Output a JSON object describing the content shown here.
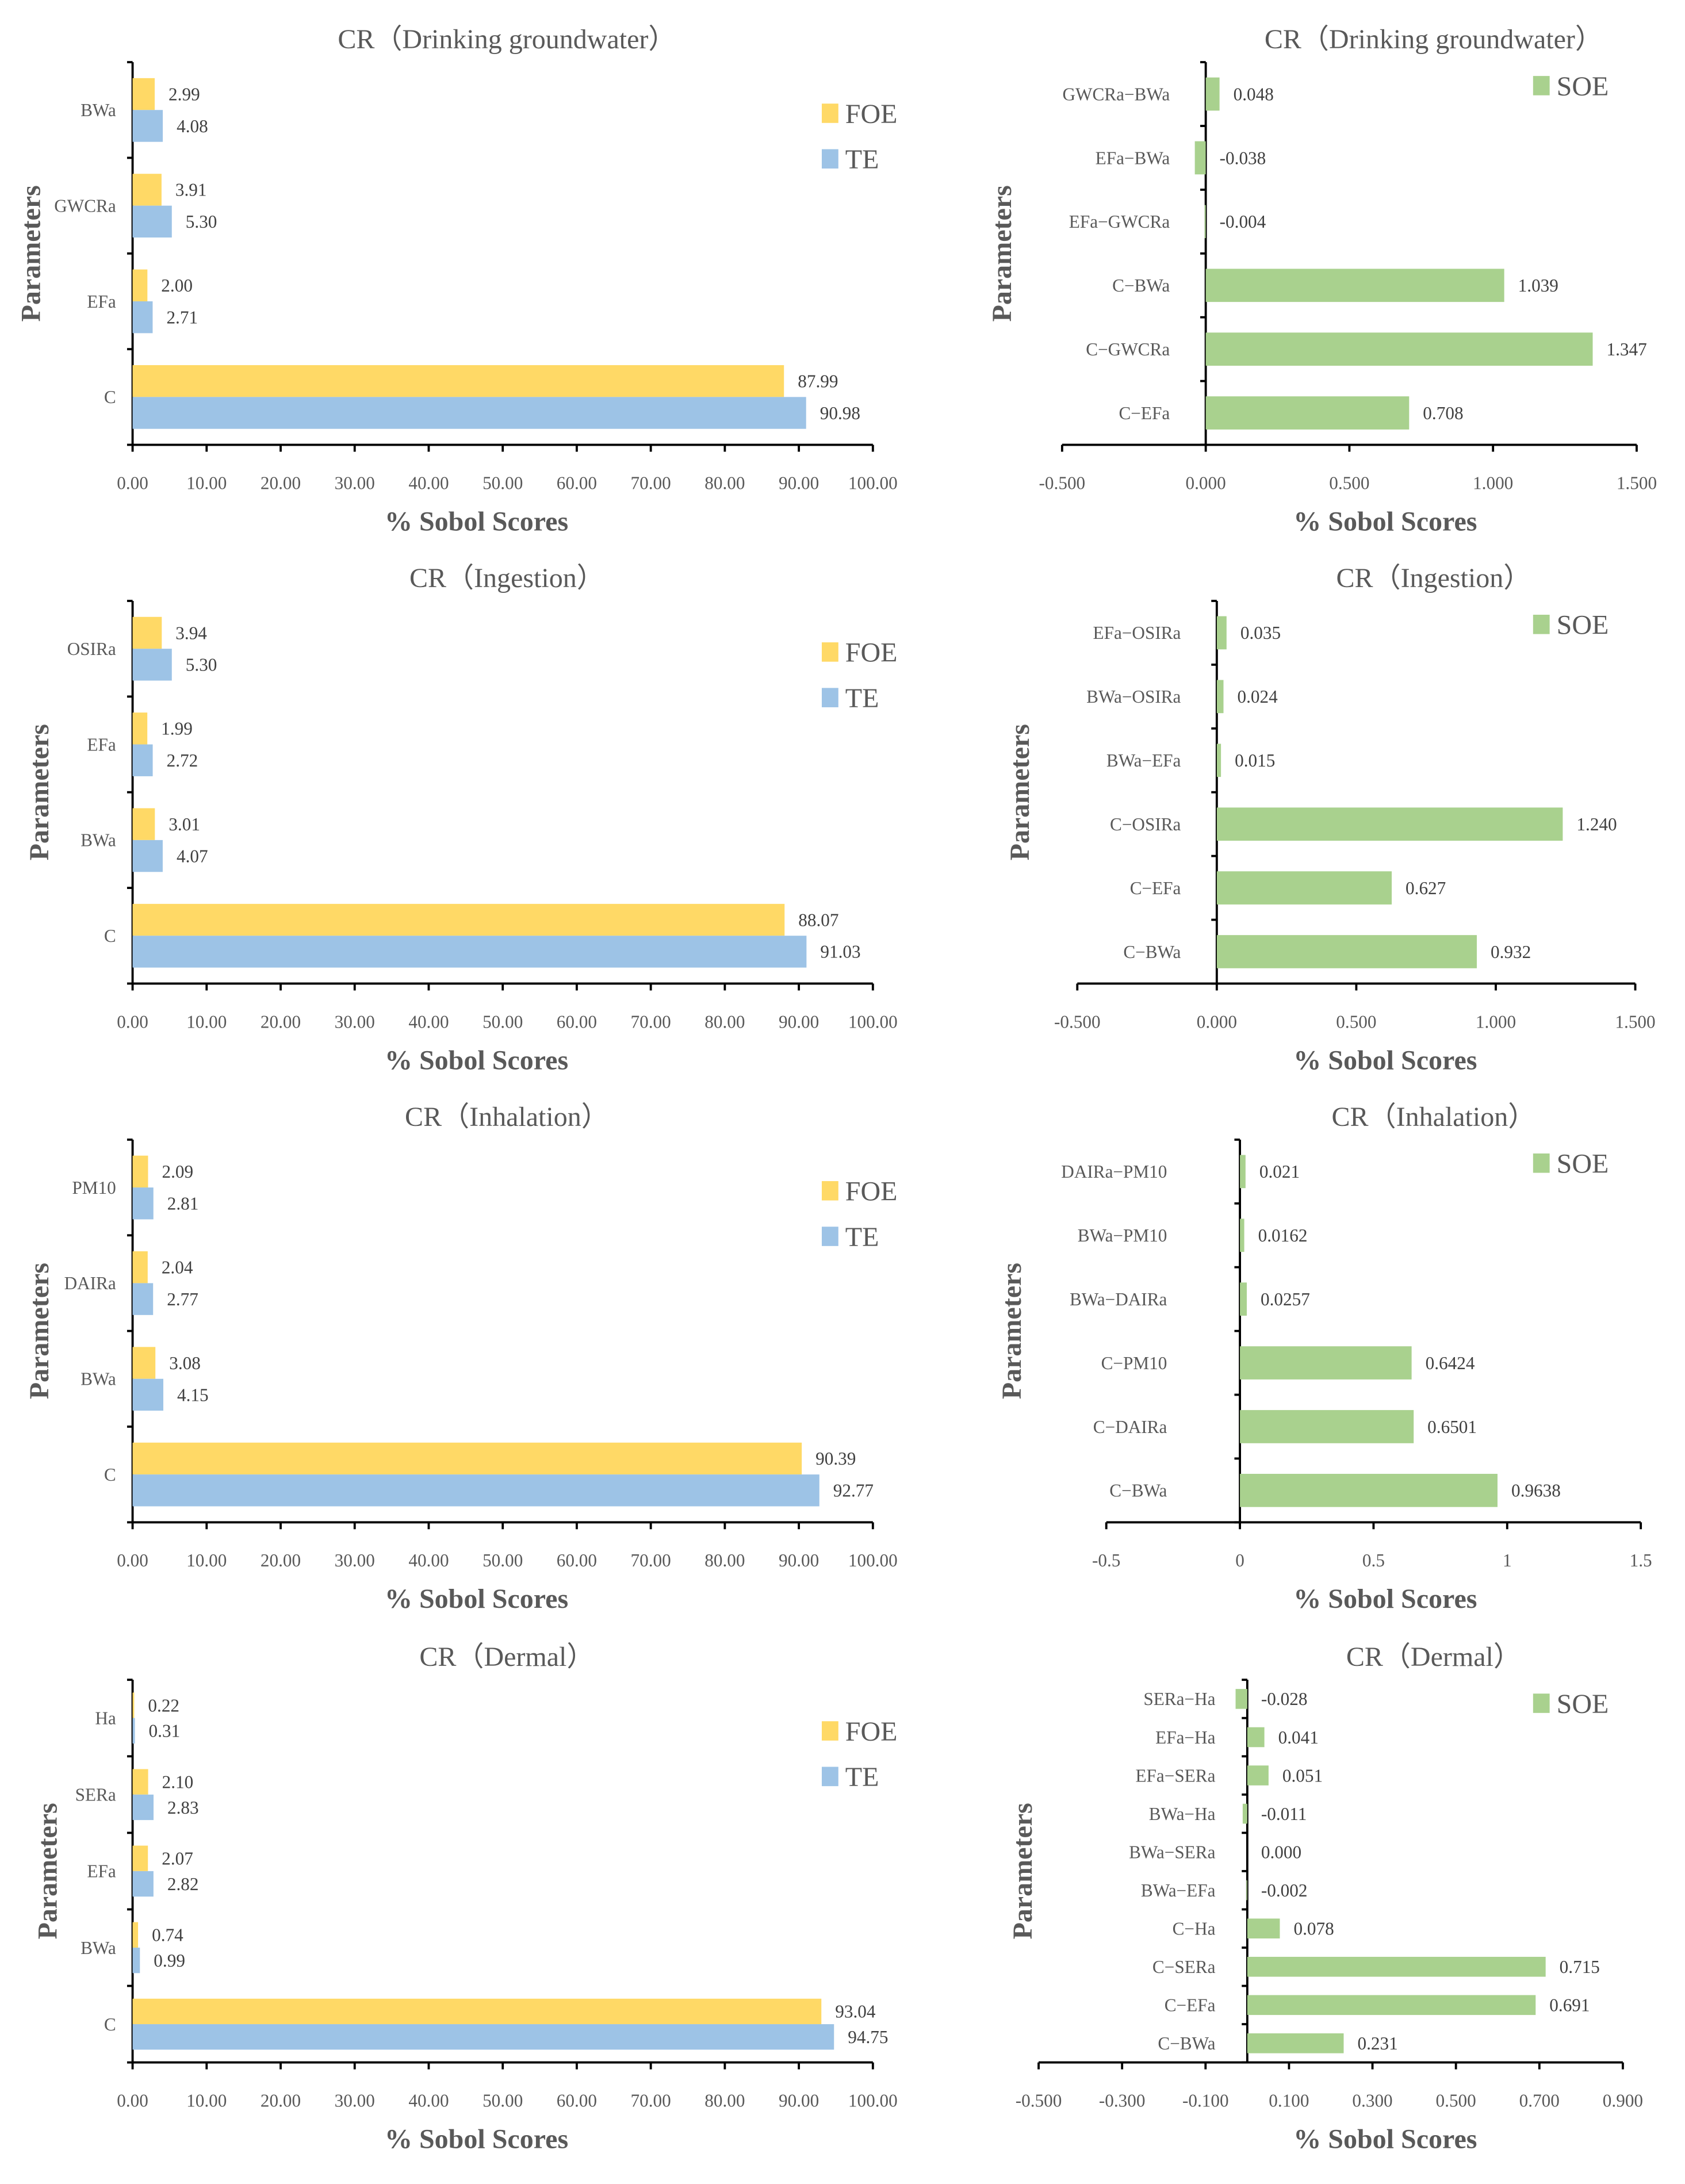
{
  "colors": {
    "FOE": "#FFD966",
    "TE": "#9DC3E6",
    "SOE": "#A9D18E",
    "text": "#595959"
  },
  "chart_data": [
    {
      "type": "bar",
      "orientation": "horizontal",
      "title": "CR（Drinking groundwater）",
      "xlabel": "% Sobol Scores",
      "ylabel": "Parameters",
      "categories": [
        "BWa",
        "GWCRa",
        "EFa",
        "C"
      ],
      "xlim": [
        0,
        100
      ],
      "xticks": [
        "0.00",
        "10.00",
        "20.00",
        "30.00",
        "40.00",
        "50.00",
        "60.00",
        "70.00",
        "80.00",
        "90.00",
        "100.00"
      ],
      "legend": "top-right",
      "series": [
        {
          "name": "FOE",
          "values": [
            2.99,
            3.91,
            2.0,
            87.99
          ],
          "labels": [
            "2.99",
            "3.91",
            "2.00",
            "87.99"
          ]
        },
        {
          "name": "TE",
          "values": [
            4.08,
            5.3,
            2.71,
            90.98
          ],
          "labels": [
            "4.08",
            "5.30",
            "2.71",
            "90.98"
          ]
        }
      ]
    },
    {
      "type": "bar",
      "orientation": "horizontal",
      "title": "CR（Drinking groundwater）",
      "xlabel": "% Sobol Scores",
      "ylabel": "Parameters",
      "categories": [
        "GWCRa−BWa",
        "EFa−BWa",
        "EFa−GWCRa",
        "C−BWa",
        "C−GWCRa",
        "C−EFa"
      ],
      "xlim": [
        -0.5,
        1.5
      ],
      "xticks": [
        "-0.500",
        "0.000",
        "0.500",
        "1.000",
        "1.500"
      ],
      "legend": "top-right",
      "series": [
        {
          "name": "SOE",
          "values": [
            0.048,
            -0.038,
            -0.004,
            1.039,
            1.347,
            0.708
          ],
          "labels": [
            "0.048",
            "-0.038",
            "-0.004",
            "1.039",
            "1.347",
            "0.708"
          ]
        }
      ]
    },
    {
      "type": "bar",
      "orientation": "horizontal",
      "title": "CR（Ingestion）",
      "xlabel": "% Sobol Scores",
      "ylabel": "Parameters",
      "categories": [
        "OSIRa",
        "EFa",
        "BWa",
        "C"
      ],
      "xlim": [
        0,
        100
      ],
      "xticks": [
        "0.00",
        "10.00",
        "20.00",
        "30.00",
        "40.00",
        "50.00",
        "60.00",
        "70.00",
        "80.00",
        "90.00",
        "100.00"
      ],
      "legend": "top-right",
      "series": [
        {
          "name": "FOE",
          "values": [
            3.94,
            1.99,
            3.01,
            88.07
          ],
          "labels": [
            "3.94",
            "1.99",
            "3.01",
            "88.07"
          ]
        },
        {
          "name": "TE",
          "values": [
            5.3,
            2.72,
            4.07,
            91.03
          ],
          "labels": [
            "5.30",
            "2.72",
            "4.07",
            "91.03"
          ]
        }
      ]
    },
    {
      "type": "bar",
      "orientation": "horizontal",
      "title": "CR（Ingestion）",
      "xlabel": "% Sobol Scores",
      "ylabel": "Parameters",
      "categories": [
        "EFa−OSIRa",
        "BWa−OSIRa",
        "BWa−EFa",
        "C−OSIRa",
        "C−EFa",
        "C−BWa"
      ],
      "xlim": [
        -0.5,
        1.5
      ],
      "xticks": [
        "-0.500",
        "0.000",
        "0.500",
        "1.000",
        "1.500"
      ],
      "legend": "top-right",
      "series": [
        {
          "name": "SOE",
          "values": [
            0.035,
            0.024,
            0.015,
            1.24,
            0.627,
            0.932
          ],
          "labels": [
            "0.035",
            "0.024",
            "0.015",
            "1.240",
            "0.627",
            "0.932"
          ]
        }
      ]
    },
    {
      "type": "bar",
      "orientation": "horizontal",
      "title": "CR（Inhalation）",
      "xlabel": "% Sobol Scores",
      "ylabel": "Parameters",
      "categories": [
        "PM10",
        "DAIRa",
        "BWa",
        "C"
      ],
      "xlim": [
        0,
        100
      ],
      "xticks": [
        "0.00",
        "10.00",
        "20.00",
        "30.00",
        "40.00",
        "50.00",
        "60.00",
        "70.00",
        "80.00",
        "90.00",
        "100.00"
      ],
      "legend": "top-right",
      "series": [
        {
          "name": "FOE",
          "values": [
            2.09,
            2.04,
            3.08,
            90.39
          ],
          "labels": [
            "2.09",
            "2.04",
            "3.08",
            "90.39"
          ]
        },
        {
          "name": "TE",
          "values": [
            2.81,
            2.77,
            4.15,
            92.77
          ],
          "labels": [
            "2.81",
            "2.77",
            "4.15",
            "92.77"
          ]
        }
      ]
    },
    {
      "type": "bar",
      "orientation": "horizontal",
      "title": "CR（Inhalation）",
      "xlabel": "% Sobol Scores",
      "ylabel": "Parameters",
      "categories": [
        "DAIRa−PM10",
        "BWa−PM10",
        "BWa−DAIRa",
        "C−PM10",
        "C−DAIRa",
        "C−BWa"
      ],
      "xlim": [
        -0.5,
        1.5
      ],
      "xticks": [
        "-0.5",
        "0",
        "0.5",
        "1",
        "1.5"
      ],
      "legend": "top-right",
      "series": [
        {
          "name": "SOE",
          "values": [
            0.021,
            0.0162,
            0.0257,
            0.6424,
            0.6501,
            0.9638
          ],
          "labels": [
            "0.021",
            "0.0162",
            "0.0257",
            "0.6424",
            "0.6501",
            "0.9638"
          ]
        }
      ]
    },
    {
      "type": "bar",
      "orientation": "horizontal",
      "title": "CR（Dermal）",
      "xlabel": "% Sobol Scores",
      "ylabel": "Parameters",
      "categories": [
        "Ha",
        "SERa",
        "EFa",
        "BWa",
        "C"
      ],
      "xlim": [
        0,
        100
      ],
      "xticks": [
        "0.00",
        "10.00",
        "20.00",
        "30.00",
        "40.00",
        "50.00",
        "60.00",
        "70.00",
        "80.00",
        "90.00",
        "100.00"
      ],
      "legend": "top-right",
      "series": [
        {
          "name": "FOE",
          "values": [
            0.22,
            2.1,
            2.07,
            0.74,
            93.04
          ],
          "labels": [
            "0.22",
            "2.10",
            "2.07",
            "0.74",
            "93.04"
          ]
        },
        {
          "name": "TE",
          "values": [
            0.31,
            2.83,
            2.82,
            0.99,
            94.75
          ],
          "labels": [
            "0.31",
            "2.83",
            "2.82",
            "0.99",
            "94.75"
          ]
        }
      ]
    },
    {
      "type": "bar",
      "orientation": "horizontal",
      "title": "CR（Dermal）",
      "xlabel": "% Sobol Scores",
      "ylabel": "Parameters",
      "categories": [
        "SERa−Ha",
        "EFa−Ha",
        "EFa−SERa",
        "BWa−Ha",
        "BWa−SERa",
        "BWa−EFa",
        "C−Ha",
        "C−SERa",
        "C−EFa",
        "C−BWa"
      ],
      "xlim": [
        -0.5,
        0.9
      ],
      "xticks": [
        "-0.500",
        "-0.300",
        "-0.100",
        "0.100",
        "0.300",
        "0.500",
        "0.700",
        "0.900"
      ],
      "legend": "top-right",
      "series": [
        {
          "name": "SOE",
          "values": [
            -0.028,
            0.041,
            0.051,
            -0.011,
            0.0,
            -0.002,
            0.078,
            0.715,
            0.691,
            0.231
          ],
          "labels": [
            "-0.028",
            "0.041",
            "0.051",
            "-0.011",
            "0.000",
            "-0.002",
            "0.078",
            "0.715",
            "0.691",
            "0.231"
          ]
        }
      ]
    }
  ]
}
